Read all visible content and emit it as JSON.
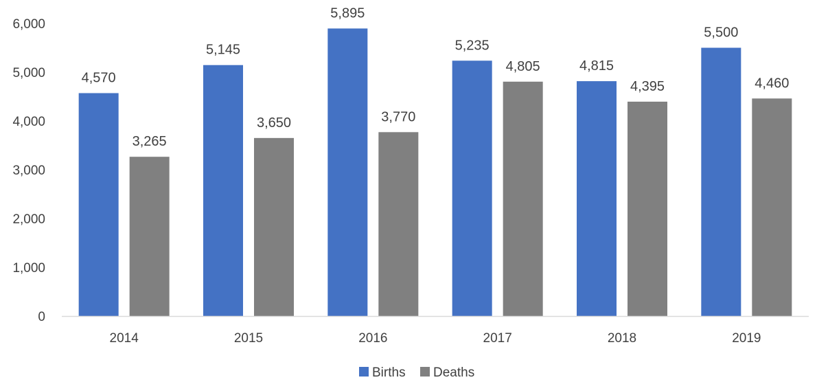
{
  "chart_data": {
    "type": "bar",
    "title": "",
    "xlabel": "",
    "ylabel": "",
    "categories": [
      "2014",
      "2015",
      "2016",
      "2017",
      "2018",
      "2019"
    ],
    "series": [
      {
        "name": "Births",
        "color": "#4472C4",
        "values": [
          4570,
          5145,
          5895,
          5235,
          4815,
          5500
        ],
        "labels": [
          "4,570",
          "5,145",
          "5,895",
          "5,235",
          "4,815",
          "5,500"
        ]
      },
      {
        "name": "Deaths",
        "color": "#808080",
        "values": [
          3265,
          3650,
          3770,
          4805,
          4395,
          4460
        ],
        "labels": [
          "3,265",
          "3,650",
          "3,770",
          "4,805",
          "4,395",
          "4,460"
        ]
      }
    ],
    "ylim": [
      0,
      6000
    ],
    "yticks": [
      0,
      1000,
      2000,
      3000,
      4000,
      5000,
      6000
    ],
    "ytick_labels": [
      "0",
      "1,000",
      "2,000",
      "3,000",
      "4,000",
      "5,000",
      "6,000"
    ],
    "grid": false,
    "legend_position": "bottom"
  },
  "colors": {
    "axis_line": "#D9D9D9",
    "text": "#404040"
  }
}
